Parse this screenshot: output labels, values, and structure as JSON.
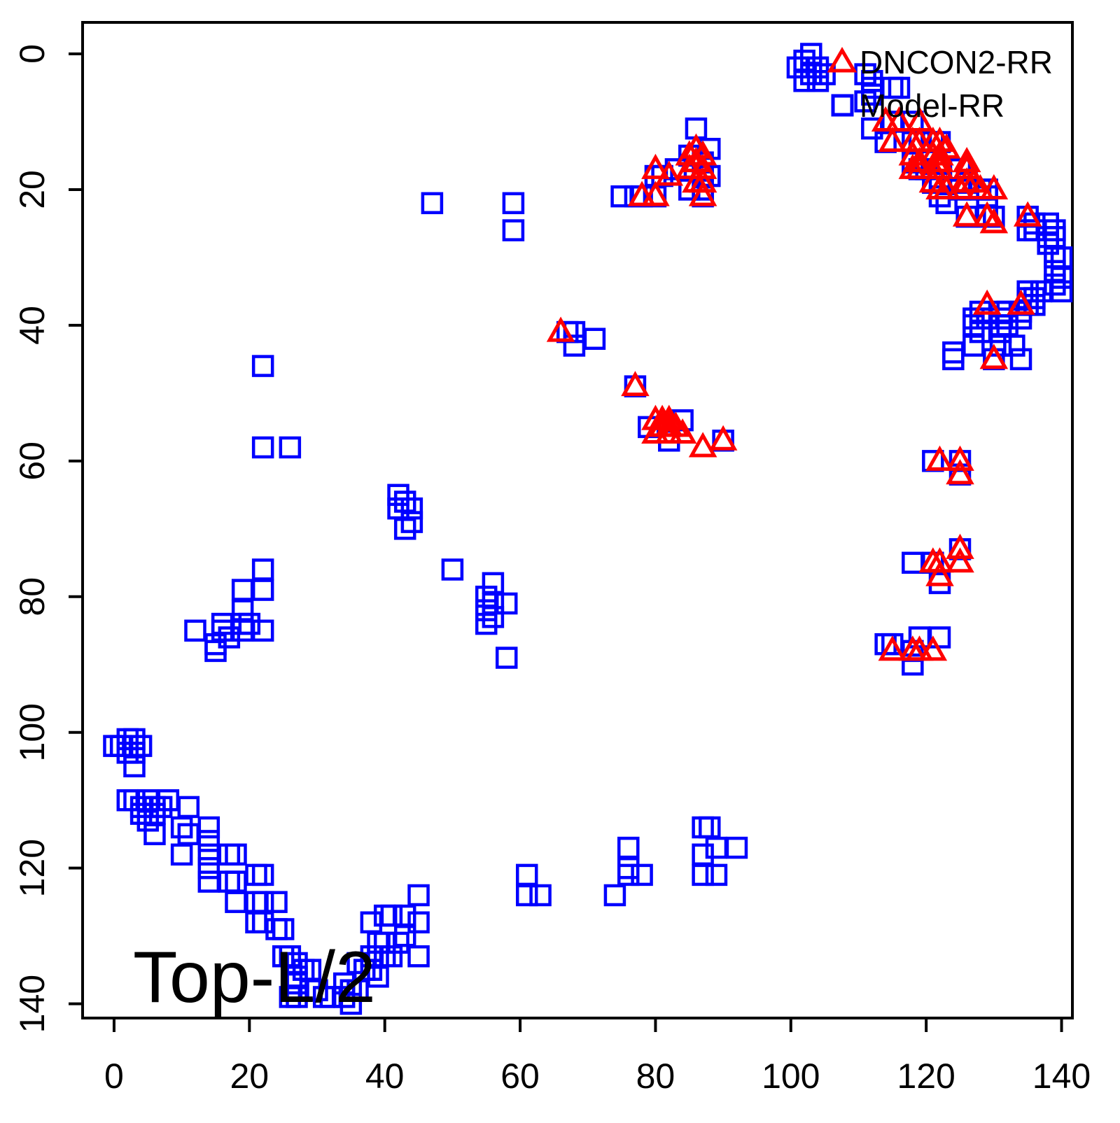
{
  "annotation": {
    "label": "Top-L/2"
  },
  "legend": {
    "items": [
      {
        "label": "DNCON2-RR",
        "marker": "triangle",
        "color": "#FF0000"
      },
      {
        "label": "Model-RR",
        "marker": "square",
        "color": "#0000FF"
      }
    ]
  },
  "chart_data": {
    "type": "scatter",
    "title": "Top-L/2",
    "xlabel": "",
    "ylabel": "",
    "grid": false,
    "legend_position": "top-right",
    "xlim": [
      -4.65,
      141.6
    ],
    "ylim": [
      -4.64,
      142.1
    ],
    "y_inverted": true,
    "x_ticks": [
      0,
      20,
      40,
      60,
      80,
      100,
      120,
      140
    ],
    "y_ticks": [
      0,
      20,
      40,
      60,
      80,
      100,
      120,
      140
    ],
    "series": [
      {
        "name": "Model-RR",
        "marker": "square",
        "color": "#0000FF",
        "points": [
          [
            103,
            0
          ],
          [
            102,
            1
          ],
          [
            101,
            2
          ],
          [
            104,
            2
          ],
          [
            103,
            3
          ],
          [
            105,
            3
          ],
          [
            102,
            4
          ],
          [
            104,
            4
          ],
          [
            111,
            3
          ],
          [
            112,
            4
          ],
          [
            112,
            5
          ],
          [
            115,
            5
          ],
          [
            116,
            5
          ],
          [
            112,
            6
          ],
          [
            111,
            7
          ],
          [
            115,
            10
          ],
          [
            118,
            10
          ],
          [
            112,
            11
          ],
          [
            114,
            13
          ],
          [
            118,
            13
          ],
          [
            119,
            13
          ],
          [
            121,
            13
          ],
          [
            122,
            13
          ],
          [
            118,
            16
          ],
          [
            119,
            17
          ],
          [
            120,
            17
          ],
          [
            125,
            17
          ],
          [
            121,
            19
          ],
          [
            122,
            19
          ],
          [
            126,
            19
          ],
          [
            125,
            20
          ],
          [
            128,
            20
          ],
          [
            129,
            20
          ],
          [
            122,
            21
          ],
          [
            129,
            21
          ],
          [
            123,
            22
          ],
          [
            126,
            24
          ],
          [
            129,
            24
          ],
          [
            130,
            24
          ],
          [
            135,
            24
          ],
          [
            136,
            25
          ],
          [
            138,
            25
          ],
          [
            135,
            26
          ],
          [
            136,
            26
          ],
          [
            139,
            26
          ],
          [
            138,
            27
          ],
          [
            139,
            27
          ],
          [
            138,
            28
          ],
          [
            139,
            30
          ],
          [
            140,
            30
          ],
          [
            139,
            32
          ],
          [
            140,
            33
          ],
          [
            139,
            34
          ],
          [
            140,
            35
          ],
          [
            135,
            35
          ],
          [
            137,
            35
          ],
          [
            135,
            36
          ],
          [
            136,
            36
          ],
          [
            135,
            37
          ],
          [
            136,
            37
          ],
          [
            128,
            38
          ],
          [
            131,
            38
          ],
          [
            132,
            38
          ],
          [
            134,
            38
          ],
          [
            127,
            39
          ],
          [
            129,
            39
          ],
          [
            132,
            39
          ],
          [
            134,
            39
          ],
          [
            127,
            40
          ],
          [
            131,
            40
          ],
          [
            132,
            40
          ],
          [
            128,
            41
          ],
          [
            131,
            41
          ],
          [
            127,
            43
          ],
          [
            131,
            43
          ],
          [
            133,
            43
          ],
          [
            124,
            44
          ],
          [
            124,
            45
          ],
          [
            130,
            45
          ],
          [
            134,
            45
          ],
          [
            47,
            22
          ],
          [
            59,
            22
          ],
          [
            59,
            26
          ],
          [
            22,
            46
          ],
          [
            22,
            58
          ],
          [
            26,
            58
          ],
          [
            86,
            11
          ],
          [
            88,
            14
          ],
          [
            85,
            15
          ],
          [
            87,
            16
          ],
          [
            83,
            17
          ],
          [
            80,
            18
          ],
          [
            81,
            18
          ],
          [
            87,
            18
          ],
          [
            88,
            18
          ],
          [
            85,
            20
          ],
          [
            87,
            20
          ],
          [
            75,
            21
          ],
          [
            77,
            21
          ],
          [
            78,
            21
          ],
          [
            80,
            21
          ],
          [
            87,
            21
          ],
          [
            77,
            49
          ],
          [
            84,
            54
          ],
          [
            79,
            55
          ],
          [
            82,
            57
          ],
          [
            90,
            57
          ],
          [
            121,
            60
          ],
          [
            125,
            60
          ],
          [
            125,
            62
          ],
          [
            42,
            65
          ],
          [
            43,
            66
          ],
          [
            42,
            67
          ],
          [
            44,
            67
          ],
          [
            44,
            69
          ],
          [
            43,
            70
          ],
          [
            50,
            76
          ],
          [
            56,
            78
          ],
          [
            55,
            80
          ],
          [
            56,
            81
          ],
          [
            58,
            81
          ],
          [
            55,
            82
          ],
          [
            56,
            83
          ],
          [
            55,
            84
          ],
          [
            58,
            89
          ],
          [
            22,
            76
          ],
          [
            19,
            79
          ],
          [
            22,
            79
          ],
          [
            19,
            82
          ],
          [
            16,
            84
          ],
          [
            19,
            84
          ],
          [
            20,
            84
          ],
          [
            12,
            85
          ],
          [
            16,
            85
          ],
          [
            19,
            85
          ],
          [
            22,
            85
          ],
          [
            17,
            86
          ],
          [
            15,
            87
          ],
          [
            15,
            88
          ],
          [
            119,
            86
          ],
          [
            122,
            86
          ],
          [
            114,
            87
          ],
          [
            115,
            87
          ],
          [
            118,
            88
          ],
          [
            118,
            90
          ],
          [
            125,
            73
          ],
          [
            118,
            75
          ],
          [
            121,
            75
          ],
          [
            122,
            78
          ],
          [
            2,
            101
          ],
          [
            3,
            101
          ],
          [
            0,
            102
          ],
          [
            1,
            102
          ],
          [
            4,
            102
          ],
          [
            2,
            103
          ],
          [
            3,
            103
          ],
          [
            3,
            105
          ],
          [
            2,
            110
          ],
          [
            3,
            110
          ],
          [
            5,
            110
          ],
          [
            8,
            110
          ],
          [
            4,
            111
          ],
          [
            6,
            111
          ],
          [
            7,
            111
          ],
          [
            11,
            111
          ],
          [
            4,
            112
          ],
          [
            6,
            112
          ],
          [
            5,
            113
          ],
          [
            10,
            114
          ],
          [
            14,
            114
          ],
          [
            6,
            115
          ],
          [
            11,
            115
          ],
          [
            14,
            116
          ],
          [
            10,
            118
          ],
          [
            14,
            118
          ],
          [
            17,
            118
          ],
          [
            18,
            118
          ],
          [
            14,
            120
          ],
          [
            21,
            121
          ],
          [
            22,
            121
          ],
          [
            14,
            122
          ],
          [
            17,
            122
          ],
          [
            18,
            122
          ],
          [
            18,
            125
          ],
          [
            21,
            125
          ],
          [
            22,
            125
          ],
          [
            24,
            125
          ],
          [
            21,
            128
          ],
          [
            22,
            128
          ],
          [
            24,
            129
          ],
          [
            25,
            129
          ],
          [
            25,
            133
          ],
          [
            26,
            133
          ],
          [
            27,
            134
          ],
          [
            34,
            137
          ],
          [
            28,
            135
          ],
          [
            29,
            135
          ],
          [
            27,
            136
          ],
          [
            27,
            137
          ],
          [
            35,
            138
          ],
          [
            36,
            138
          ],
          [
            29,
            138
          ],
          [
            30,
            138
          ],
          [
            26,
            139
          ],
          [
            27,
            139
          ],
          [
            31,
            139
          ],
          [
            32,
            139
          ],
          [
            34,
            139
          ],
          [
            35,
            140
          ],
          [
            45,
            124
          ],
          [
            40,
            127
          ],
          [
            41,
            127
          ],
          [
            43,
            127
          ],
          [
            38,
            128
          ],
          [
            45,
            128
          ],
          [
            43,
            130
          ],
          [
            39,
            131
          ],
          [
            40,
            131
          ],
          [
            42,
            131
          ],
          [
            38,
            133
          ],
          [
            39,
            133
          ],
          [
            40,
            133
          ],
          [
            41,
            133
          ],
          [
            45,
            133
          ],
          [
            36,
            134
          ],
          [
            37,
            135
          ],
          [
            38,
            135
          ],
          [
            39,
            136
          ],
          [
            61,
            121
          ],
          [
            61,
            124
          ],
          [
            63,
            124
          ],
          [
            67,
            41
          ],
          [
            68,
            41
          ],
          [
            71,
            42
          ],
          [
            68,
            43
          ],
          [
            87,
            114
          ],
          [
            88,
            114
          ],
          [
            76,
            117
          ],
          [
            89,
            117
          ],
          [
            92,
            117
          ],
          [
            87,
            118
          ],
          [
            76,
            120
          ],
          [
            76,
            121
          ],
          [
            78,
            121
          ],
          [
            87,
            121
          ],
          [
            89,
            121
          ],
          [
            74,
            124
          ]
        ]
      },
      {
        "name": "DNCON2-RR",
        "marker": "triangle",
        "color": "#FF0000",
        "points": [
          [
            86,
            14
          ],
          [
            85,
            15
          ],
          [
            87,
            15
          ],
          [
            86,
            16
          ],
          [
            87,
            17
          ],
          [
            85,
            17
          ],
          [
            80,
            17
          ],
          [
            82,
            18
          ],
          [
            87,
            19
          ],
          [
            86,
            19
          ],
          [
            78,
            21
          ],
          [
            80,
            21
          ],
          [
            87,
            21
          ],
          [
            114,
            10
          ],
          [
            116,
            10
          ],
          [
            119,
            10
          ],
          [
            115,
            13
          ],
          [
            118,
            13
          ],
          [
            119,
            13
          ],
          [
            121,
            13
          ],
          [
            122,
            13
          ],
          [
            123,
            14
          ],
          [
            118,
            15
          ],
          [
            121,
            15
          ],
          [
            122,
            15
          ],
          [
            119,
            16
          ],
          [
            122,
            16
          ],
          [
            126,
            16
          ],
          [
            118,
            17
          ],
          [
            119,
            17
          ],
          [
            121,
            17
          ],
          [
            122,
            17
          ],
          [
            126,
            17
          ],
          [
            121,
            19
          ],
          [
            126,
            19
          ],
          [
            127,
            19
          ],
          [
            122,
            20
          ],
          [
            123,
            20
          ],
          [
            125,
            20
          ],
          [
            128,
            20
          ],
          [
            130,
            20
          ],
          [
            126,
            24
          ],
          [
            129,
            24
          ],
          [
            130,
            25
          ],
          [
            135,
            24
          ],
          [
            129,
            37
          ],
          [
            134,
            37
          ],
          [
            130,
            45
          ],
          [
            66,
            41
          ],
          [
            77,
            49
          ],
          [
            80,
            54
          ],
          [
            81,
            54
          ],
          [
            82,
            54
          ],
          [
            81,
            55
          ],
          [
            82,
            55
          ],
          [
            83,
            55
          ],
          [
            80,
            56
          ],
          [
            82,
            56
          ],
          [
            84,
            56
          ],
          [
            87,
            58
          ],
          [
            90,
            57
          ],
          [
            122,
            60
          ],
          [
            125,
            60
          ],
          [
            125,
            62
          ],
          [
            121,
            75
          ],
          [
            122,
            75
          ],
          [
            125,
            73
          ],
          [
            125,
            75
          ],
          [
            122,
            77
          ],
          [
            115,
            88
          ],
          [
            118,
            88
          ],
          [
            119,
            88
          ],
          [
            121,
            88
          ]
        ]
      }
    ]
  }
}
